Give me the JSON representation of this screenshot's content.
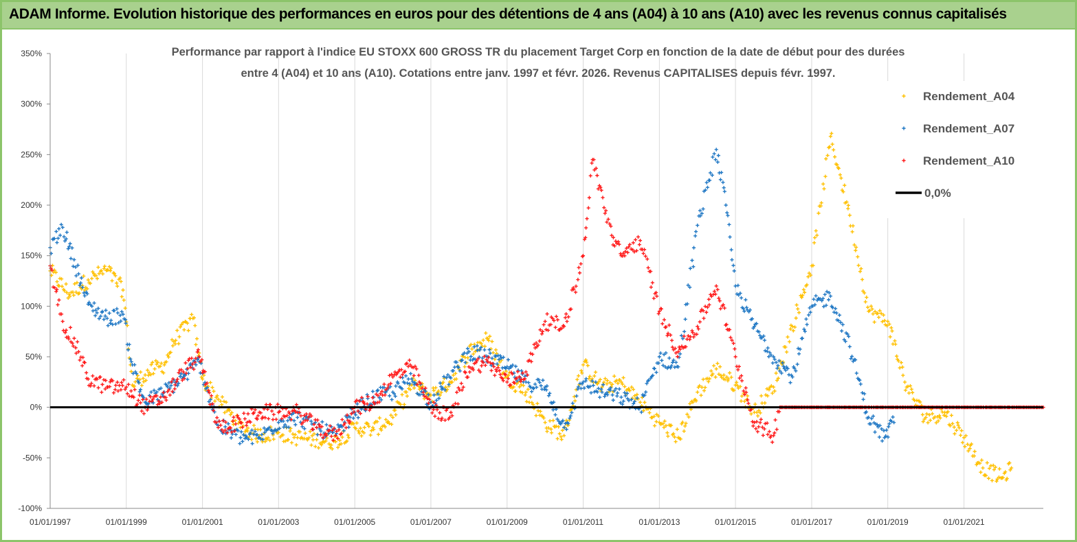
{
  "banner": {
    "title": "ADAM Informe. Evolution historique des performances en euros pour des détentions de 4 ans (A04) à 10 ans (A10) avec les revenus connus capitalisés"
  },
  "chart_data": {
    "type": "scatter",
    "title_lines": [
      "Performance par rapport à l'indice EU STOXX 600 GROSS TR  du placement Target Corp en fonction de la date de début pour des durées",
      "entre 4 (A04) et 10 ans (A10). Cotations entre janv. 1997 et févr. 2026. Revenus CAPITALISES depuis févr. 1997."
    ],
    "x_tick_labels": [
      "01/01/1997",
      "01/01/1999",
      "01/01/2001",
      "01/01/2003",
      "01/01/2005",
      "01/01/2007",
      "01/01/2009",
      "01/01/2011",
      "01/01/2013",
      "01/01/2015",
      "01/01/2017",
      "01/01/2019",
      "01/01/2021"
    ],
    "xlim": [
      "1997-01-01",
      "2023-02-01"
    ],
    "y_tick_labels": [
      "350%",
      "300%",
      "250%",
      "200%",
      "150%",
      "100%",
      "50%",
      "0%",
      "-50%",
      "-100%"
    ],
    "ylim": [
      -100,
      350
    ],
    "grid": "vertical",
    "legend_position": "top-right",
    "series": [
      {
        "name": "Rendement_A04",
        "color": "#ffc000",
        "marker": "plus",
        "points": [
          [
            "1997-01-01",
            135
          ],
          [
            "1997-07-01",
            112
          ],
          [
            "1998-01-01",
            126
          ],
          [
            "1998-07-01",
            136
          ],
          [
            "1998-12-01",
            116
          ],
          [
            "1999-03-01",
            22
          ],
          [
            "1999-07-01",
            32
          ],
          [
            "1999-10-01",
            38
          ],
          [
            "2000-01-01",
            42
          ],
          [
            "2000-04-01",
            65
          ],
          [
            "2000-10-01",
            88
          ],
          [
            "2001-01-01",
            28
          ],
          [
            "2001-06-01",
            8
          ],
          [
            "2002-01-01",
            -20
          ],
          [
            "2002-07-01",
            -28
          ],
          [
            "2003-01-01",
            -25
          ],
          [
            "2003-07-01",
            -30
          ],
          [
            "2004-01-01",
            -32
          ],
          [
            "2004-07-01",
            -34
          ],
          [
            "2005-01-01",
            -20
          ],
          [
            "2005-07-01",
            -22
          ],
          [
            "2006-01-01",
            -10
          ],
          [
            "2006-07-01",
            22
          ],
          [
            "2007-01-01",
            12
          ],
          [
            "2007-07-01",
            25
          ],
          [
            "2008-01-01",
            55
          ],
          [
            "2008-07-01",
            68
          ],
          [
            "2009-01-01",
            30
          ],
          [
            "2009-07-01",
            15
          ],
          [
            "2010-01-01",
            -15
          ],
          [
            "2010-07-01",
            -28
          ],
          [
            "2011-01-01",
            42
          ],
          [
            "2011-07-01",
            20
          ],
          [
            "2012-01-01",
            25
          ],
          [
            "2012-07-01",
            5
          ],
          [
            "2013-01-01",
            -15
          ],
          [
            "2013-07-01",
            -30
          ],
          [
            "2014-01-01",
            15
          ],
          [
            "2014-07-01",
            38
          ],
          [
            "2015-01-01",
            22
          ],
          [
            "2015-07-01",
            -5
          ],
          [
            "2016-01-01",
            20
          ],
          [
            "2016-07-01",
            80
          ],
          [
            "2017-01-01",
            140
          ],
          [
            "2017-07-01",
            268
          ],
          [
            "2017-10-01",
            230
          ],
          [
            "2018-01-01",
            190
          ],
          [
            "2018-07-01",
            95
          ],
          [
            "2019-01-01",
            85
          ],
          [
            "2019-07-01",
            20
          ],
          [
            "2020-01-01",
            -10
          ],
          [
            "2020-07-01",
            -5
          ],
          [
            "2021-01-01",
            -30
          ],
          [
            "2021-07-01",
            -60
          ],
          [
            "2022-01-01",
            -70
          ],
          [
            "2022-04-01",
            -60
          ]
        ]
      },
      {
        "name": "Rendement_A07",
        "color": "#1f77c4",
        "marker": "plus",
        "points": [
          [
            "1997-01-01",
            158
          ],
          [
            "1997-05-01",
            178
          ],
          [
            "1997-10-01",
            132
          ],
          [
            "1998-01-01",
            102
          ],
          [
            "1998-07-01",
            88
          ],
          [
            "1998-12-01",
            92
          ],
          [
            "1999-03-01",
            42
          ],
          [
            "1999-07-01",
            5
          ],
          [
            "2000-01-01",
            15
          ],
          [
            "2000-07-01",
            30
          ],
          [
            "2000-12-01",
            45
          ],
          [
            "2001-06-01",
            -18
          ],
          [
            "2002-01-01",
            -30
          ],
          [
            "2002-07-01",
            -30
          ],
          [
            "2003-01-01",
            -15
          ],
          [
            "2003-07-01",
            -10
          ],
          [
            "2004-01-01",
            -20
          ],
          [
            "2004-07-01",
            -28
          ],
          [
            "2005-01-01",
            -5
          ],
          [
            "2005-07-01",
            10
          ],
          [
            "2006-01-01",
            15
          ],
          [
            "2006-07-01",
            28
          ],
          [
            "2007-01-01",
            5
          ],
          [
            "2007-07-01",
            30
          ],
          [
            "2008-01-01",
            55
          ],
          [
            "2008-07-01",
            50
          ],
          [
            "2009-01-01",
            40
          ],
          [
            "2009-07-01",
            25
          ],
          [
            "2010-01-01",
            20
          ],
          [
            "2010-07-01",
            -20
          ],
          [
            "2011-01-01",
            25
          ],
          [
            "2011-07-01",
            15
          ],
          [
            "2012-01-01",
            10
          ],
          [
            "2012-07-01",
            0
          ],
          [
            "2013-01-01",
            50
          ],
          [
            "2013-07-01",
            40
          ],
          [
            "2014-01-01",
            180
          ],
          [
            "2014-07-01",
            255
          ],
          [
            "2014-10-01",
            200
          ],
          [
            "2015-01-01",
            120
          ],
          [
            "2015-07-01",
            80
          ],
          [
            "2016-01-01",
            50
          ],
          [
            "2016-07-01",
            30
          ],
          [
            "2017-01-01",
            100
          ],
          [
            "2017-07-01",
            110
          ],
          [
            "2018-01-01",
            60
          ],
          [
            "2018-07-01",
            -10
          ],
          [
            "2018-12-01",
            -30
          ],
          [
            "2019-03-01",
            -15
          ]
        ]
      },
      {
        "name": "Rendement_A10",
        "color": "#ff1a1a",
        "marker": "plus",
        "points": [
          [
            "1997-01-01",
            140
          ],
          [
            "1997-05-01",
            85
          ],
          [
            "1997-10-01",
            55
          ],
          [
            "1998-01-01",
            28
          ],
          [
            "1998-07-01",
            20
          ],
          [
            "1999-01-01",
            20
          ],
          [
            "1999-07-01",
            0
          ],
          [
            "2000-01-01",
            10
          ],
          [
            "2000-07-01",
            35
          ],
          [
            "2000-12-01",
            50
          ],
          [
            "2001-06-01",
            -20
          ],
          [
            "2002-01-01",
            -15
          ],
          [
            "2002-07-01",
            -5
          ],
          [
            "2003-01-01",
            -5
          ],
          [
            "2003-07-01",
            -5
          ],
          [
            "2004-01-01",
            -20
          ],
          [
            "2004-07-01",
            -28
          ],
          [
            "2005-01-01",
            0
          ],
          [
            "2005-07-01",
            5
          ],
          [
            "2006-01-01",
            30
          ],
          [
            "2006-07-01",
            40
          ],
          [
            "2007-01-01",
            0
          ],
          [
            "2007-07-01",
            -10
          ],
          [
            "2008-01-01",
            40
          ],
          [
            "2008-07-01",
            45
          ],
          [
            "2009-01-01",
            25
          ],
          [
            "2009-07-01",
            35
          ],
          [
            "2010-01-01",
            85
          ],
          [
            "2010-07-01",
            80
          ],
          [
            "2011-01-01",
            150
          ],
          [
            "2011-04-01",
            245
          ],
          [
            "2011-10-01",
            170
          ],
          [
            "2012-01-01",
            150
          ],
          [
            "2012-07-01",
            165
          ],
          [
            "2013-01-01",
            95
          ],
          [
            "2013-07-01",
            55
          ],
          [
            "2014-01-01",
            80
          ],
          [
            "2014-07-01",
            120
          ],
          [
            "2015-01-01",
            50
          ],
          [
            "2015-07-01",
            -15
          ],
          [
            "2016-01-01",
            -28
          ],
          [
            "2016-03-01",
            0
          ],
          [
            "2023-02-01",
            0
          ]
        ]
      }
    ],
    "reference_line": {
      "name": "0,0%",
      "y": 0,
      "color": "#000000"
    }
  }
}
